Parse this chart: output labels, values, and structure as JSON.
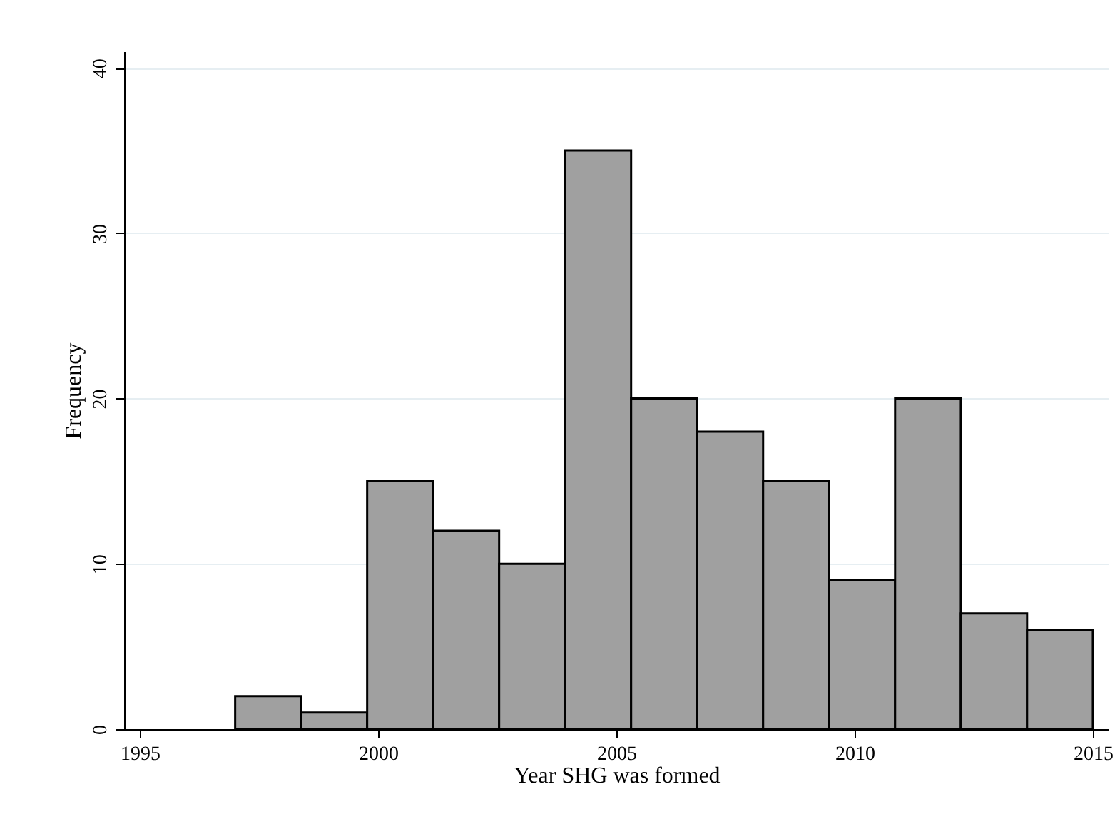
{
  "chart_data": {
    "type": "histogram",
    "xlabel": "Year SHG was formed",
    "ylabel": "Frequency",
    "bins": [
      1997,
      1998.38,
      1999.77,
      2001.15,
      2002.54,
      2003.92,
      2005.31,
      2006.69,
      2008.08,
      2009.46,
      2010.85,
      2012.23,
      2013.62,
      2015
    ],
    "values": [
      2,
      1,
      15,
      12,
      10,
      35,
      20,
      18,
      15,
      9,
      20,
      7,
      6
    ],
    "color": "#a0a0a0",
    "xlim": [
      1994.67,
      2015.33
    ],
    "xticks": [
      1995,
      2000,
      2005,
      2010,
      2015
    ],
    "ylim": [
      0,
      41
    ],
    "yticks": [
      0,
      10,
      20,
      30,
      40
    ],
    "grid": "y"
  }
}
